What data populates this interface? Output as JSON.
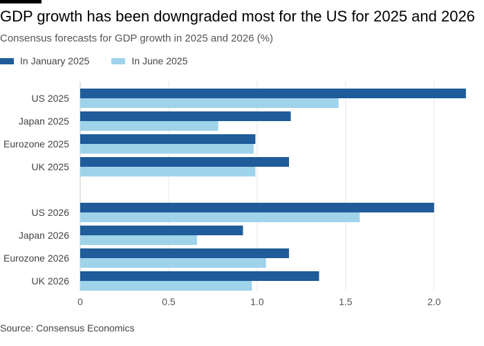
{
  "header": {
    "title": "GDP growth has been downgraded most for the US for 2025 and 2026",
    "subtitle": "Consensus forecasts for GDP growth in 2025 and 2026 (%)"
  },
  "footer": {
    "source": "Source: Consensus Economics"
  },
  "colors": {
    "january": "#1f5c99",
    "june": "#9fd3ea",
    "grid": "#e9e6e2",
    "axis": "#c8c4bf"
  },
  "chart_data": {
    "type": "bar",
    "orientation": "horizontal",
    "title": "GDP growth has been downgraded most for the US for 2025 and 2026",
    "subtitle": "Consensus forecasts for GDP growth in 2025 and 2026 (%)",
    "categories": [
      "US 2025",
      "Japan 2025",
      "Eurozone 2025",
      "UK 2025",
      "US 2026",
      "Japan 2026",
      "Eurozone 2026",
      "UK 2026"
    ],
    "groups": [
      [
        "US 2025",
        "Japan 2025",
        "Eurozone 2025",
        "UK 2025"
      ],
      [
        "US 2026",
        "Japan 2026",
        "Eurozone 2026",
        "UK 2026"
      ]
    ],
    "series": [
      {
        "name": "In January 2025",
        "values": [
          2.18,
          1.19,
          0.99,
          1.18,
          2.0,
          0.92,
          1.18,
          1.35
        ]
      },
      {
        "name": "In June 2025",
        "values": [
          1.46,
          0.78,
          0.98,
          0.99,
          1.58,
          0.66,
          1.05,
          0.97
        ]
      }
    ],
    "xlim": [
      0,
      2.2
    ],
    "xticks": [
      0,
      0.5,
      1.0,
      1.5,
      2.0
    ],
    "xtick_labels": [
      "0",
      "0.5",
      "1.0",
      "1.5",
      "2.0"
    ],
    "grid": true,
    "legend": "top-left",
    "xlabel": "",
    "ylabel": "",
    "source": "Source: Consensus Economics"
  }
}
